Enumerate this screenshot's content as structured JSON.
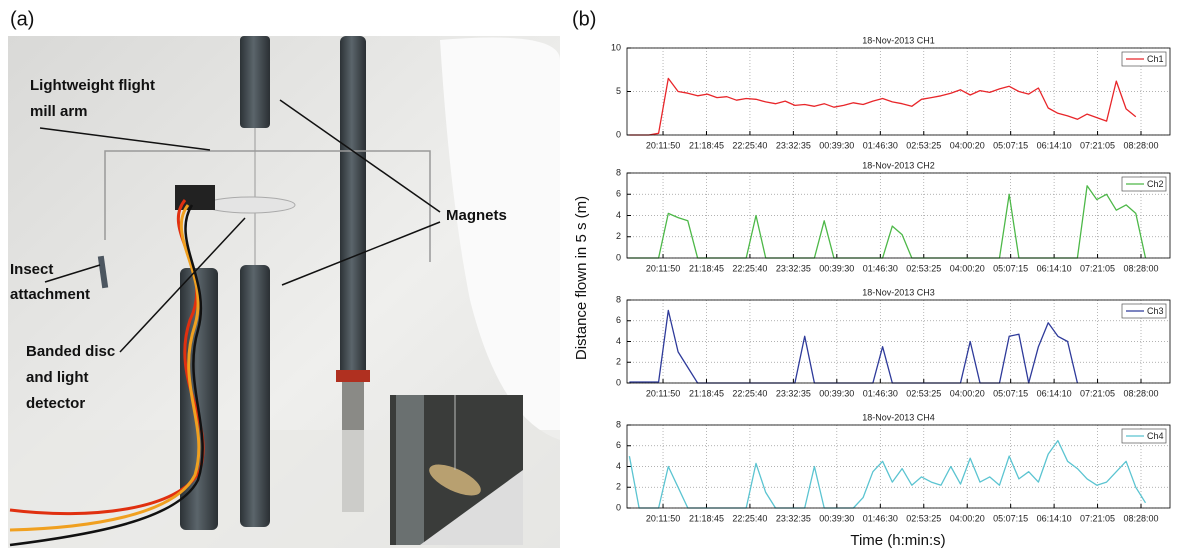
{
  "panel_a": {
    "label": "(a)",
    "annotations": [
      [
        "Lightweight flight",
        "mill arm"
      ],
      [
        "Magnets"
      ],
      [
        "Insect",
        "attachment"
      ],
      [
        "Banded disc",
        "and light",
        "detector"
      ]
    ]
  },
  "panel_b": {
    "label": "(b)",
    "ylabel": "Distance flown in 5 s (m)",
    "xlabel": "Time (h:min:s)"
  },
  "chart_data": [
    {
      "type": "line",
      "title": "18-Nov-2013 CH1",
      "x": [
        "19:20:00",
        "19:35:00",
        "19:50:00",
        "20:05:00",
        "20:20:00",
        "20:35:00",
        "20:50:00",
        "21:05:00",
        "21:20:00",
        "21:35:00",
        "21:50:00",
        "22:05:00",
        "22:20:00",
        "22:35:00",
        "22:50:00",
        "23:05:00",
        "23:20:00",
        "23:35:00",
        "23:50:00",
        "00:05:00",
        "00:20:00",
        "00:35:00",
        "00:50:00",
        "01:05:00",
        "01:20:00",
        "01:35:00",
        "01:50:00",
        "02:05:00",
        "02:20:00",
        "02:35:00",
        "02:50:00",
        "03:05:00",
        "03:20:00",
        "03:35:00",
        "03:50:00",
        "04:05:00",
        "04:20:00",
        "04:35:00",
        "04:50:00",
        "05:05:00",
        "05:20:00",
        "05:35:00",
        "05:50:00",
        "06:05:00",
        "06:20:00",
        "06:35:00",
        "06:50:00",
        "07:05:00",
        "07:20:00",
        "07:35:00",
        "07:50:00",
        "08:05:00",
        "08:20:00",
        "08:35:00",
        "08:50:00",
        "09:05:00"
      ],
      "xlim": [
        "19:16:20",
        "09:12:40"
      ],
      "xticks": [
        "20:11:50",
        "21:18:45",
        "22:25:40",
        "23:32:35",
        "00:39:30",
        "01:46:30",
        "02:53:25",
        "04:00:20",
        "05:07:15",
        "06:14:10",
        "07:21:05",
        "08:28:00"
      ],
      "ylim": [
        0,
        10
      ],
      "yticks": [
        0,
        5,
        10
      ],
      "grid": true,
      "legend": "upper right",
      "series": [
        {
          "name": "Ch1",
          "color": "#e8262a",
          "values": [
            0,
            0,
            0,
            0.2,
            6.5,
            5,
            4.8,
            4.5,
            4.7,
            4.3,
            4.4,
            4,
            4.2,
            4.1,
            3.8,
            3.6,
            3.9,
            3.4,
            3.5,
            3.3,
            3.6,
            3.2,
            3.4,
            3.7,
            3.5,
            3.9,
            4.2,
            3.8,
            3.6,
            3.3,
            4.1,
            4.3,
            4.5,
            4.8,
            5.2,
            4.6,
            5.1,
            4.9,
            5.3,
            5.6,
            5,
            4.7,
            5.4,
            3.1,
            2.5,
            2.2,
            1.8,
            2.4,
            2,
            1.6,
            6.2,
            3,
            2.1,
            null,
            null,
            null
          ]
        }
      ]
    },
    {
      "type": "line",
      "title": "18-Nov-2013 CH2",
      "x": [
        "19:20:00",
        "19:35:00",
        "19:50:00",
        "20:05:00",
        "20:20:00",
        "20:35:00",
        "20:50:00",
        "21:05:00",
        "21:20:00",
        "21:35:00",
        "21:50:00",
        "22:05:00",
        "22:20:00",
        "22:35:00",
        "22:50:00",
        "23:05:00",
        "23:20:00",
        "23:35:00",
        "23:50:00",
        "00:05:00",
        "00:20:00",
        "00:35:00",
        "00:50:00",
        "01:05:00",
        "01:20:00",
        "01:35:00",
        "01:50:00",
        "02:05:00",
        "02:20:00",
        "02:35:00",
        "02:50:00",
        "03:05:00",
        "03:20:00",
        "03:35:00",
        "03:50:00",
        "04:05:00",
        "04:20:00",
        "04:35:00",
        "04:50:00",
        "05:05:00",
        "05:20:00",
        "05:35:00",
        "05:50:00",
        "06:05:00",
        "06:20:00",
        "06:35:00",
        "06:50:00",
        "07:05:00",
        "07:20:00",
        "07:35:00",
        "07:50:00",
        "08:05:00",
        "08:20:00",
        "08:35:00",
        "08:50:00",
        "09:05:00"
      ],
      "xlim": [
        "19:16:20",
        "09:12:40"
      ],
      "xticks": [
        "20:11:50",
        "21:18:45",
        "22:25:40",
        "23:32:35",
        "00:39:30",
        "01:46:30",
        "02:53:25",
        "04:00:20",
        "05:07:15",
        "06:14:10",
        "07:21:05",
        "08:28:00"
      ],
      "ylim": [
        0,
        8
      ],
      "yticks": [
        0,
        2,
        4,
        6,
        8
      ],
      "grid": true,
      "legend": "upper right",
      "series": [
        {
          "name": "Ch2",
          "color": "#4db848",
          "values": [
            0,
            0,
            0,
            0,
            4.2,
            3.8,
            3.5,
            0,
            0,
            0,
            0,
            0,
            0,
            4,
            0,
            0,
            0,
            0,
            0,
            0,
            3.5,
            0,
            0,
            0,
            0,
            0,
            0,
            3,
            2.2,
            0,
            0,
            0,
            0,
            0,
            0,
            0,
            0,
            0,
            0,
            6,
            0,
            0,
            0,
            0,
            0,
            0,
            0,
            6.8,
            5.5,
            6,
            4.5,
            5,
            4.2,
            0,
            null,
            null
          ]
        }
      ]
    },
    {
      "type": "line",
      "title": "18-Nov-2013 CH3",
      "x": [
        "19:20:00",
        "19:35:00",
        "19:50:00",
        "20:05:00",
        "20:20:00",
        "20:35:00",
        "20:50:00",
        "21:05:00",
        "21:20:00",
        "21:35:00",
        "21:50:00",
        "22:05:00",
        "22:20:00",
        "22:35:00",
        "22:50:00",
        "23:05:00",
        "23:20:00",
        "23:35:00",
        "23:50:00",
        "00:05:00",
        "00:20:00",
        "00:35:00",
        "00:50:00",
        "01:05:00",
        "01:20:00",
        "01:35:00",
        "01:50:00",
        "02:05:00",
        "02:20:00",
        "02:35:00",
        "02:50:00",
        "03:05:00",
        "03:20:00",
        "03:35:00",
        "03:50:00",
        "04:05:00",
        "04:20:00",
        "04:35:00",
        "04:50:00",
        "05:05:00",
        "05:20:00",
        "05:35:00",
        "05:50:00",
        "06:05:00",
        "06:20:00",
        "06:35:00",
        "06:50:00",
        "07:05:00",
        "07:20:00",
        "07:35:00",
        "07:50:00",
        "08:05:00",
        "08:20:00",
        "08:35:00",
        "08:50:00",
        "09:05:00"
      ],
      "xlim": [
        "19:16:20",
        "09:12:40"
      ],
      "xticks": [
        "20:11:50",
        "21:18:45",
        "22:25:40",
        "23:32:35",
        "00:39:30",
        "01:46:30",
        "02:53:25",
        "04:00:20",
        "05:07:15",
        "06:14:10",
        "07:21:05",
        "08:28:00"
      ],
      "ylim": [
        0,
        8
      ],
      "yticks": [
        0,
        2,
        4,
        6,
        8
      ],
      "grid": true,
      "legend": "upper right",
      "series": [
        {
          "name": "Ch3",
          "color": "#2e3a9a",
          "values": [
            0.1,
            0.1,
            0.1,
            0.1,
            7,
            3,
            1.5,
            0,
            0,
            0,
            0,
            0,
            0,
            0,
            0,
            0,
            0,
            0,
            4.5,
            0,
            0,
            0,
            0,
            0,
            0,
            0,
            3.5,
            0,
            0,
            0,
            0,
            0,
            0,
            0,
            0,
            4,
            0,
            0,
            0,
            4.5,
            4.7,
            0,
            3.5,
            5.8,
            4.5,
            4,
            0,
            null,
            null,
            null,
            null,
            null,
            null,
            null,
            null,
            null
          ]
        }
      ]
    },
    {
      "type": "line",
      "title": "18-Nov-2013 CH4",
      "x": [
        "19:20:00",
        "19:35:00",
        "19:50:00",
        "20:05:00",
        "20:20:00",
        "20:35:00",
        "20:50:00",
        "21:05:00",
        "21:20:00",
        "21:35:00",
        "21:50:00",
        "22:05:00",
        "22:20:00",
        "22:35:00",
        "22:50:00",
        "23:05:00",
        "23:20:00",
        "23:35:00",
        "23:50:00",
        "00:05:00",
        "00:20:00",
        "00:35:00",
        "00:50:00",
        "01:05:00",
        "01:20:00",
        "01:35:00",
        "01:50:00",
        "02:05:00",
        "02:20:00",
        "02:35:00",
        "02:50:00",
        "03:05:00",
        "03:20:00",
        "03:35:00",
        "03:50:00",
        "04:05:00",
        "04:20:00",
        "04:35:00",
        "04:50:00",
        "05:05:00",
        "05:20:00",
        "05:35:00",
        "05:50:00",
        "06:05:00",
        "06:20:00",
        "06:35:00",
        "06:50:00",
        "07:05:00",
        "07:20:00",
        "07:35:00",
        "07:50:00",
        "08:05:00",
        "08:20:00",
        "08:35:00",
        "08:50:00",
        "09:05:00"
      ],
      "xlim": [
        "19:16:20",
        "09:12:40"
      ],
      "xticks": [
        "20:11:50",
        "21:18:45",
        "22:25:40",
        "23:32:35",
        "00:39:30",
        "01:46:30",
        "02:53:25",
        "04:00:20",
        "05:07:15",
        "06:14:10",
        "07:21:05",
        "08:28:00"
      ],
      "ylim": [
        0,
        8
      ],
      "yticks": [
        0,
        2,
        4,
        6,
        8
      ],
      "grid": true,
      "legend": "upper right",
      "series": [
        {
          "name": "Ch4",
          "color": "#5bc4d1",
          "values": [
            5,
            0,
            0,
            0,
            4,
            2,
            0,
            0,
            0,
            0,
            0,
            0,
            0,
            4.3,
            1.5,
            0,
            0,
            0,
            0,
            4,
            0,
            0,
            0,
            0,
            1,
            3.5,
            4.5,
            2.5,
            3.8,
            2.2,
            3,
            2.5,
            2.2,
            4,
            2.3,
            4.8,
            2.5,
            3,
            2.2,
            5,
            2.8,
            3.5,
            2.5,
            5.2,
            6.5,
            4.5,
            3.8,
            2.8,
            2.2,
            2.5,
            3.5,
            4.5,
            2,
            0.5,
            null,
            null
          ]
        }
      ]
    }
  ]
}
